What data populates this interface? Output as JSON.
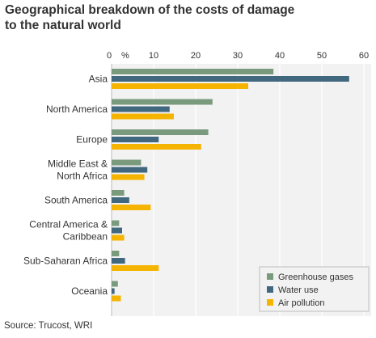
{
  "title_lines": [
    "Geographical breakdown of the costs of damage",
    "to the natural world"
  ],
  "source": "Source: Trucost, WRI",
  "chart_data": {
    "type": "bar",
    "orientation": "horizontal",
    "x_unit": "%",
    "xlim": [
      0,
      60
    ],
    "x_ticks": [
      0,
      10,
      20,
      30,
      40,
      50,
      60
    ],
    "grid": true,
    "legend_position": "bottom-right",
    "categories": [
      "Asia",
      "North America",
      "Europe",
      "Middle East & North Africa",
      "South America",
      "Central America & Caribbean",
      "Sub-Saharan Africa",
      "Oceania"
    ],
    "category_lines": [
      [
        "Asia"
      ],
      [
        "North America"
      ],
      [
        "Europe"
      ],
      [
        "Middle East &",
        "North Africa"
      ],
      [
        "South America"
      ],
      [
        "Central America &",
        "Caribbean"
      ],
      [
        "Sub-Saharan Africa"
      ],
      [
        "Oceania"
      ]
    ],
    "series": [
      {
        "name": "Greenhouse gases",
        "color": "#7a9a7d",
        "values": [
          38.5,
          24,
          23,
          7,
          3,
          1.8,
          1.8,
          1.5
        ]
      },
      {
        "name": "Water use",
        "color": "#41687f",
        "values": [
          56.5,
          13.8,
          11.2,
          8.5,
          4.2,
          2.5,
          3.2,
          0.7
        ]
      },
      {
        "name": "Air pollution",
        "color": "#f5b400",
        "values": [
          32.5,
          14.8,
          21.3,
          7.8,
          9.3,
          3,
          11.2,
          2.2
        ]
      }
    ]
  }
}
